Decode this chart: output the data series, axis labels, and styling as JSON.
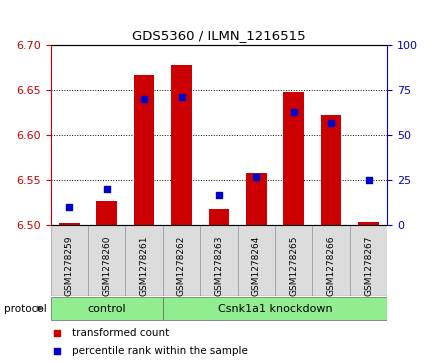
{
  "title": "GDS5360 / ILMN_1216515",
  "samples": [
    "GSM1278259",
    "GSM1278260",
    "GSM1278261",
    "GSM1278262",
    "GSM1278263",
    "GSM1278264",
    "GSM1278265",
    "GSM1278266",
    "GSM1278267"
  ],
  "transformed_counts": [
    6.502,
    6.527,
    6.667,
    6.678,
    6.518,
    6.558,
    6.648,
    6.623,
    6.503
  ],
  "percentile_ranks": [
    10,
    20,
    70,
    71,
    17,
    27,
    63,
    57,
    25
  ],
  "ylim_left": [
    6.5,
    6.7
  ],
  "ylim_right": [
    0,
    100
  ],
  "yticks_left": [
    6.5,
    6.55,
    6.6,
    6.65,
    6.7
  ],
  "yticks_right": [
    0,
    25,
    50,
    75,
    100
  ],
  "bar_color": "#CC0000",
  "dot_color": "#0000CC",
  "bar_bottom": 6.5,
  "plot_bg": "#FFFFFF",
  "left_tick_color": "#CC0000",
  "right_tick_color": "#0000CC",
  "legend_items": [
    {
      "label": "transformed count",
      "color": "#CC0000"
    },
    {
      "label": "percentile rank within the sample",
      "color": "#0000CC"
    }
  ],
  "group_color": "#90EE90",
  "gray_box_color": "#DCDCDC",
  "control_count": 3,
  "knockdown_count": 6
}
